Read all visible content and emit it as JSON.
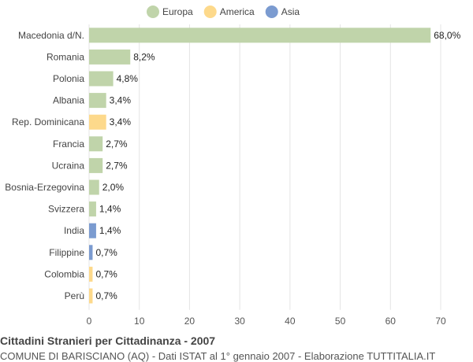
{
  "chart_data": {
    "type": "bar",
    "orientation": "horizontal",
    "title": "Cittadini Stranieri per Cittadinanza - 2007",
    "subtitle": "COMUNE DI BARISCIANO (AQ) - Dati ISTAT al 1° gennaio 2007 - Elaborazione TUTTITALIA.IT",
    "xlim": [
      0,
      70
    ],
    "xticks": [
      0,
      10,
      20,
      30,
      40,
      50,
      60,
      70
    ],
    "grid": true,
    "legend_position": "top-center",
    "legend": [
      {
        "name": "Europa",
        "color": "#c0d4aa"
      },
      {
        "name": "America",
        "color": "#fdd98b"
      },
      {
        "name": "Asia",
        "color": "#7b9bd0"
      }
    ],
    "categories": [
      "Macedonia d/N.",
      "Romania",
      "Polonia",
      "Albania",
      "Rep. Dominicana",
      "Francia",
      "Ucraina",
      "Bosnia-Erzegovina",
      "Svizzera",
      "India",
      "Filippine",
      "Colombia",
      "Perù"
    ],
    "values": [
      68.0,
      8.2,
      4.8,
      3.4,
      3.4,
      2.7,
      2.7,
      2.0,
      1.4,
      1.4,
      0.7,
      0.7,
      0.7
    ],
    "value_labels": [
      "68,0%",
      "8,2%",
      "4,8%",
      "3,4%",
      "3,4%",
      "2,7%",
      "2,7%",
      "2,0%",
      "1,4%",
      "1,4%",
      "0,7%",
      "0,7%",
      "0,7%"
    ],
    "groups": [
      "Europa",
      "Europa",
      "Europa",
      "Europa",
      "America",
      "Europa",
      "Europa",
      "Europa",
      "Europa",
      "Asia",
      "Asia",
      "America",
      "America"
    ]
  }
}
